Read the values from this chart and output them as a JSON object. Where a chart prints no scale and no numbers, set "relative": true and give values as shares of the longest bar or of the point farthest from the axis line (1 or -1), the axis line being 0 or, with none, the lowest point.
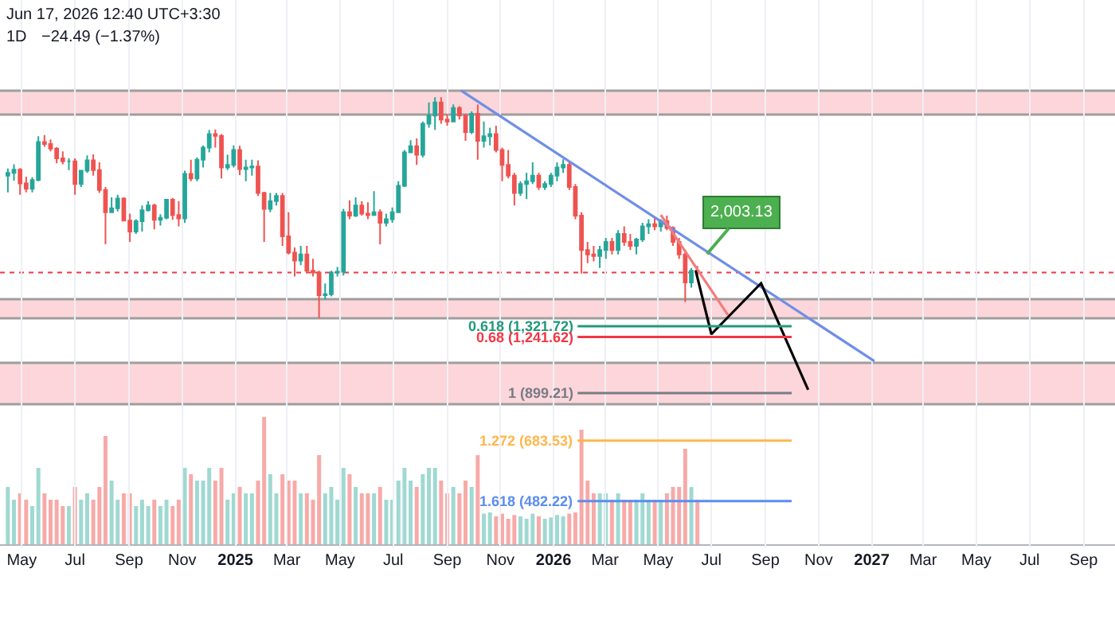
{
  "chart_data": [
    {
      "type": "candlestick",
      "log": true,
      "tick_labels": "x",
      "grid": "x",
      "annotations": [
        "Jun 17, 2026 12:40 UTC+3:30",
        "1D",
        "−24.49 (−1.37%)",
        {
          "text": "2,003.13",
          "x": "2026-06-26",
          "y": 2003.13
        }
      ],
      "colors": [
        "#26a69a",
        "#26a69a",
        "#ef5350",
        "#ef5350",
        "#26a69a",
        "#26a69a",
        "#ef5350",
        "#ef5350",
        "#ef5350",
        "#ef5350",
        "#26a69a",
        "#ef5350",
        "#26a69a",
        "#26a69a",
        "#ef5350",
        "#ef5350",
        "#ef5350",
        "#26a69a",
        "#26a69a",
        "#ef5350",
        "#ef5350",
        "#26a69a",
        "#26a69a",
        "#26a69a",
        "#ef5350",
        "#26a69a",
        "#26a69a",
        "#ef5350",
        "#ef5350",
        "#26a69a",
        "#ef5350",
        "#26a69a",
        "#26a69a",
        "#26a69a",
        "#ef5350",
        "#ef5350",
        "#26a69a",
        "#26a69a",
        "#ef5350",
        "#26a69a",
        "#26a69a",
        "#ef5350",
        "#ef5350",
        "#26a69a",
        "#26a69a",
        "#ef5350",
        "#ef5350",
        "#ef5350",
        "#26a69a",
        "#ef5350",
        "#ef5350",
        "#ef5350",
        "#26a69a",
        "#26a69a",
        "#26a69a",
        "#26a69a",
        "#ef5350",
        "#26a69a",
        "#ef5350",
        "#ef5350",
        "#26a69a",
        "#ef5350",
        "#26a69a",
        "#26a69a",
        "#26a69a",
        "#26a69a",
        "#26a69a",
        "#ef5350",
        "#26a69a",
        "#26a69a",
        "#26a69a",
        "#ef5350",
        "#ef5350",
        "#26a69a",
        "#ef5350",
        "#ef5350",
        "#26a69a",
        "#ef5350",
        "#26a69a",
        "#26a69a",
        "#ef5350",
        "#ef5350",
        "#ef5350",
        "#ef5350",
        "#26a69a",
        "#26a69a",
        "#26a69a",
        "#ef5350",
        "#26a69a",
        "#26a69a",
        "#26a69a",
        "#26a69a",
        "#ef5350",
        "#ef5350",
        "#ef5350",
        "#ef5350",
        "#ef5350",
        "#26a69a",
        "#26a69a",
        "#ef5350",
        "#26a69a",
        "#ef5350",
        "#ef5350",
        "#26a69a",
        "#26a69a",
        "#26a69a",
        "#ef5350",
        "#26a69a",
        "#ef5350",
        "#ef5350",
        "#ef5350",
        "#ef5350",
        "#26a69a",
        "#ef5350"
      ],
      "xlim": [
        "2024-04-06",
        "2027-10-07"
      ],
      "ylim": [
        369,
        8670
      ],
      "xticks": [
        {
          "value": "2024-05-01",
          "label": "May"
        },
        {
          "value": "2024-07-01",
          "label": "Jul"
        },
        {
          "value": "2024-09-01",
          "label": "Sep"
        },
        {
          "value": "2024-11-01",
          "label": "Nov"
        },
        {
          "value": "2025-01-01",
          "label": "2025"
        },
        {
          "value": "2025-03-01",
          "label": "Mar"
        },
        {
          "value": "2025-05-01",
          "label": "May"
        },
        {
          "value": "2025-07-01",
          "label": "Jul"
        },
        {
          "value": "2025-09-01",
          "label": "Sep"
        },
        {
          "value": "2025-11-01",
          "label": "Nov"
        },
        {
          "value": "2026-01-01",
          "label": "2026"
        },
        {
          "value": "2026-03-01",
          "label": "Mar"
        },
        {
          "value": "2026-05-01",
          "label": "May"
        },
        {
          "value": "2026-07-01",
          "label": "Jul"
        },
        {
          "value": "2026-09-01",
          "label": "Sep"
        },
        {
          "value": "2026-11-01",
          "label": "Nov"
        },
        {
          "value": "2027-01-01",
          "label": "2027"
        },
        {
          "value": "2027-03-01",
          "label": "Mar"
        },
        {
          "value": "2027-05-01",
          "label": "May"
        },
        {
          "value": "2027-07-01",
          "label": "Jul"
        },
        {
          "value": "2027-09-01",
          "label": "Sep"
        }
      ],
      "x": [
        "2024-04-15",
        "2024-04-22",
        "2024-04-29",
        "2024-05-06",
        "2024-05-13",
        "2024-05-20",
        "2024-05-27",
        "2024-06-03",
        "2024-06-10",
        "2024-06-17",
        "2024-06-24",
        "2024-07-01",
        "2024-07-08",
        "2024-07-15",
        "2024-07-22",
        "2024-07-29",
        "2024-08-05",
        "2024-08-12",
        "2024-08-19",
        "2024-08-26",
        "2024-09-02",
        "2024-09-09",
        "2024-09-16",
        "2024-09-23",
        "2024-09-30",
        "2024-10-07",
        "2024-10-14",
        "2024-10-21",
        "2024-10-28",
        "2024-11-04",
        "2024-11-11",
        "2024-11-18",
        "2024-11-25",
        "2024-12-02",
        "2024-12-09",
        "2024-12-16",
        "2024-12-23",
        "2024-12-30",
        "2025-01-06",
        "2025-01-13",
        "2025-01-20",
        "2025-01-27",
        "2025-02-03",
        "2025-02-10",
        "2025-02-17",
        "2025-02-24",
        "2025-03-03",
        "2025-03-10",
        "2025-03-17",
        "2025-03-24",
        "2025-03-31",
        "2025-04-07",
        "2025-04-14",
        "2025-04-21",
        "2025-04-28",
        "2025-05-05",
        "2025-05-12",
        "2025-05-19",
        "2025-05-26",
        "2025-06-02",
        "2025-06-09",
        "2025-06-16",
        "2025-06-23",
        "2025-06-30",
        "2025-07-07",
        "2025-07-14",
        "2025-07-21",
        "2025-07-28",
        "2025-08-04",
        "2025-08-11",
        "2025-08-18",
        "2025-08-25",
        "2025-09-01",
        "2025-09-08",
        "2025-09-15",
        "2025-09-22",
        "2025-09-29",
        "2025-10-06",
        "2025-10-13",
        "2025-10-20",
        "2025-10-27",
        "2025-11-03",
        "2025-11-10",
        "2025-11-17",
        "2025-11-24",
        "2025-12-01",
        "2025-12-08",
        "2025-12-15",
        "2025-12-22",
        "2025-12-29",
        "2026-01-05",
        "2026-01-12",
        "2026-01-19",
        "2026-01-26",
        "2026-02-02",
        "2026-02-09",
        "2026-02-16",
        "2026-02-23",
        "2026-03-02",
        "2026-03-09",
        "2026-03-16",
        "2026-03-23",
        "2026-03-30",
        "2026-04-06",
        "2026-04-13",
        "2026-04-20",
        "2026-04-27",
        "2026-05-04",
        "2026-05-11",
        "2026-05-18",
        "2026-05-25",
        "2026-06-01",
        "2026-06-08",
        "2026-06-15"
      ],
      "ohlc": [
        [
          3150,
          3280,
          2860,
          3200
        ],
        [
          3200,
          3360,
          3060,
          3260
        ],
        [
          3260,
          3290,
          2820,
          3010
        ],
        [
          3010,
          3130,
          2860,
          2920
        ],
        [
          2920,
          3120,
          2860,
          3070
        ],
        [
          3070,
          3950,
          3050,
          3820
        ],
        [
          3820,
          3980,
          3720,
          3780
        ],
        [
          3780,
          3880,
          3620,
          3680
        ],
        [
          3680,
          3710,
          3380,
          3480
        ],
        [
          3480,
          3620,
          3360,
          3420
        ],
        [
          3420,
          3480,
          3250,
          3420
        ],
        [
          3420,
          3480,
          2820,
          3000
        ],
        [
          3000,
          3250,
          2950,
          3240
        ],
        [
          3240,
          3540,
          3200,
          3440
        ],
        [
          3440,
          3560,
          3150,
          3250
        ],
        [
          3250,
          3400,
          2850,
          2900
        ],
        [
          2900,
          2950,
          2120,
          2550
        ],
        [
          2550,
          2780,
          2550,
          2610
        ],
        [
          2610,
          2820,
          2560,
          2760
        ],
        [
          2760,
          2780,
          2420,
          2430
        ],
        [
          2430,
          2530,
          2150,
          2280
        ],
        [
          2280,
          2450,
          2250,
          2420
        ],
        [
          2420,
          2650,
          2280,
          2580
        ],
        [
          2580,
          2720,
          2560,
          2650
        ],
        [
          2650,
          2680,
          2310,
          2440
        ],
        [
          2440,
          2520,
          2360,
          2470
        ],
        [
          2470,
          2750,
          2450,
          2740
        ],
        [
          2740,
          2770,
          2440,
          2510
        ],
        [
          2510,
          2720,
          2350,
          2460
        ],
        [
          2460,
          3240,
          2400,
          3180
        ],
        [
          3180,
          3450,
          3050,
          3100
        ],
        [
          3100,
          3500,
          3050,
          3450
        ],
        [
          3450,
          3750,
          3300,
          3700
        ],
        [
          3700,
          4100,
          3600,
          4000
        ],
        [
          4000,
          4110,
          3700,
          3960
        ],
        [
          3960,
          4000,
          3100,
          3300
        ],
        [
          3300,
          3550,
          3250,
          3350
        ],
        [
          3350,
          3750,
          3300,
          3650
        ],
        [
          3650,
          3740,
          3160,
          3270
        ],
        [
          3270,
          3450,
          3050,
          3300
        ],
        [
          3300,
          3450,
          3150,
          3320
        ],
        [
          3320,
          3440,
          2800,
          2850
        ],
        [
          2850,
          2870,
          2150,
          2600
        ],
        [
          2600,
          2850,
          2550,
          2720
        ],
        [
          2720,
          2850,
          2650,
          2800
        ],
        [
          2800,
          2850,
          2100,
          2220
        ],
        [
          2220,
          2550,
          2000,
          2020
        ],
        [
          2020,
          2080,
          1760,
          1930
        ],
        [
          1930,
          2100,
          1880,
          2000
        ],
        [
          2000,
          2100,
          1800,
          1820
        ],
        [
          1820,
          1950,
          1760,
          1800
        ],
        [
          1800,
          1820,
          1385,
          1580
        ],
        [
          1580,
          1690,
          1540,
          1590
        ],
        [
          1590,
          1820,
          1570,
          1800
        ],
        [
          1800,
          1860,
          1760,
          1810
        ],
        [
          1810,
          2600,
          1770,
          2550
        ],
        [
          2550,
          2730,
          2450,
          2500
        ],
        [
          2500,
          2780,
          2480,
          2650
        ],
        [
          2650,
          2720,
          2500,
          2530
        ],
        [
          2530,
          2700,
          2450,
          2510
        ],
        [
          2510,
          2880,
          2500,
          2550
        ],
        [
          2550,
          2590,
          2120,
          2400
        ],
        [
          2400,
          2530,
          2350,
          2450
        ],
        [
          2450,
          2620,
          2400,
          2550
        ],
        [
          2550,
          3050,
          2540,
          2970
        ],
        [
          2970,
          3650,
          2950,
          3600
        ],
        [
          3600,
          3860,
          3600,
          3730
        ],
        [
          3730,
          3900,
          3350,
          3550
        ],
        [
          3550,
          4300,
          3500,
          4250
        ],
        [
          4250,
          4800,
          4150,
          4450
        ],
        [
          4450,
          4950,
          4100,
          4800
        ],
        [
          4800,
          4950,
          4250,
          4350
        ],
        [
          4350,
          4500,
          4200,
          4300
        ],
        [
          4300,
          4750,
          4280,
          4650
        ],
        [
          4650,
          4700,
          4350,
          4450
        ],
        [
          4450,
          4500,
          3850,
          4050
        ],
        [
          4050,
          4560,
          4000,
          4500
        ],
        [
          4500,
          4750,
          3450,
          3850
        ],
        [
          3850,
          4300,
          3700,
          3950
        ],
        [
          3950,
          4150,
          3750,
          4000
        ],
        [
          4000,
          4200,
          3600,
          3650
        ],
        [
          3650,
          3700,
          3050,
          3350
        ],
        [
          3350,
          3650,
          3100,
          3150
        ],
        [
          3150,
          3200,
          2650,
          2850
        ],
        [
          2850,
          3050,
          2800,
          3000
        ],
        [
          3000,
          3200,
          2750,
          3050
        ],
        [
          3050,
          3400,
          3000,
          3150
        ],
        [
          3150,
          3200,
          2900,
          2950
        ],
        [
          2950,
          3050,
          2900,
          3000
        ],
        [
          3000,
          3200,
          2950,
          3150
        ],
        [
          3150,
          3400,
          3050,
          3300
        ],
        [
          3300,
          3460,
          3200,
          3350
        ],
        [
          3350,
          3400,
          2900,
          2950
        ],
        [
          2950,
          3000,
          2450,
          2500
        ],
        [
          2500,
          2550,
          1790,
          2050
        ],
        [
          2050,
          2150,
          1900,
          2000
        ],
        [
          2000,
          2100,
          1920,
          1980
        ],
        [
          1980,
          2100,
          1850,
          2050
        ],
        [
          2050,
          2200,
          1950,
          2150
        ],
        [
          2150,
          2200,
          2000,
          2050
        ],
        [
          2050,
          2300,
          2000,
          2250
        ],
        [
          2250,
          2350,
          2100,
          2150
        ],
        [
          2150,
          2250,
          2050,
          2100
        ],
        [
          2100,
          2200,
          2000,
          2180
        ],
        [
          2180,
          2400,
          2150,
          2350
        ],
        [
          2350,
          2450,
          2250,
          2380
        ],
        [
          2380,
          2480,
          2300,
          2350
        ],
        [
          2350,
          2450,
          2280,
          2420
        ],
        [
          2420,
          2500,
          2300,
          2330
        ],
        [
          2330,
          2350,
          2100,
          2150
        ],
        [
          2150,
          2200,
          1950,
          2000
        ],
        [
          2000,
          2050,
          1520,
          1700
        ],
        [
          1700,
          1850,
          1650,
          1820
        ],
        [
          1820,
          1870,
          1780,
          1800
        ]
      ],
      "bands": [
        {
          "axis": "y",
          "from": 4477,
          "to": 5140,
          "color": "#fcd6da"
        },
        {
          "axis": "y",
          "from": 1384,
          "to": 1545,
          "color": "#fcd6da"
        },
        {
          "axis": "y",
          "from": 843,
          "to": 1070,
          "color": "#fcd6da"
        }
      ],
      "ref_lines": [
        {
          "axis": "y",
          "value": 1800,
          "color": "#f23645",
          "line_style": "dotted"
        },
        {
          "axis": "y",
          "value": 1321.72,
          "label": "0.618 (1,321.72)",
          "color": "#22997a"
        },
        {
          "axis": "y",
          "value": 1241.62,
          "label": "0.68 (1,241.62)",
          "color": "#f23645"
        },
        {
          "axis": "y",
          "value": 899.21,
          "label": "1 (899.21)",
          "color": "#787b86"
        },
        {
          "axis": "y",
          "value": 683.53,
          "label": "1.272 (683.53)",
          "color": "#ffb74d"
        },
        {
          "axis": "y",
          "value": 482.22,
          "label": "1.618 (482.22)",
          "color": "#5b8def"
        }
      ],
      "series": [
        {
          "type": "line",
          "color": "#6f8ee6",
          "x": [
            "2025-09-17",
            "2027-01-04"
          ],
          "values": [
            5140,
            1080
          ]
        },
        {
          "type": "line",
          "color": "#f47c7c",
          "x": [
            "2026-05-04",
            "2026-07-20"
          ],
          "values": [
            2510,
            1410
          ]
        },
        {
          "type": "line",
          "color": "#000000",
          "x": [
            "2026-06-13",
            "2026-07-01",
            "2026-08-27",
            "2026-10-20"
          ],
          "values": [
            1822,
            1262,
            1693,
            916
          ]
        }
      ]
    },
    {
      "type": "bar",
      "relative": true,
      "tick_labels": false,
      "xlim": [
        "2024-04-06",
        "2027-10-07"
      ],
      "xticks": [
        {
          "value": "2024-05-01",
          "label": null
        },
        {
          "value": "2024-07-01",
          "label": null
        },
        {
          "value": "2024-09-01",
          "label": null
        },
        {
          "value": "2024-11-01",
          "label": null
        },
        {
          "value": "2025-01-01",
          "label": null
        },
        {
          "value": "2025-03-01",
          "label": null
        },
        {
          "value": "2025-05-01",
          "label": null
        },
        {
          "value": "2025-07-01",
          "label": null
        },
        {
          "value": "2025-09-01",
          "label": null
        },
        {
          "value": "2025-11-01",
          "label": null
        },
        {
          "value": "2026-01-01",
          "label": null
        },
        {
          "value": "2026-03-01",
          "label": null
        },
        {
          "value": "2026-05-01",
          "label": null
        },
        {
          "value": "2026-07-01",
          "label": null
        },
        {
          "value": "2026-09-01",
          "label": null
        },
        {
          "value": "2026-11-01",
          "label": null
        },
        {
          "value": "2027-01-01",
          "label": null
        },
        {
          "value": "2027-03-01",
          "label": null
        },
        {
          "value": "2027-05-01",
          "label": null
        },
        {
          "value": "2027-07-01",
          "label": null
        },
        {
          "value": "2027-09-01",
          "label": null
        }
      ],
      "x": [
        "2024-04-15",
        "2024-04-22",
        "2024-04-29",
        "2024-05-06",
        "2024-05-13",
        "2024-05-20",
        "2024-05-27",
        "2024-06-03",
        "2024-06-10",
        "2024-06-17",
        "2024-06-24",
        "2024-07-01",
        "2024-07-08",
        "2024-07-15",
        "2024-07-22",
        "2024-07-29",
        "2024-08-05",
        "2024-08-12",
        "2024-08-19",
        "2024-08-26",
        "2024-09-02",
        "2024-09-09",
        "2024-09-16",
        "2024-09-23",
        "2024-09-30",
        "2024-10-07",
        "2024-10-14",
        "2024-10-21",
        "2024-10-28",
        "2024-11-04",
        "2024-11-11",
        "2024-11-18",
        "2024-11-25",
        "2024-12-02",
        "2024-12-09",
        "2024-12-16",
        "2024-12-23",
        "2024-12-30",
        "2025-01-06",
        "2025-01-13",
        "2025-01-20",
        "2025-01-27",
        "2025-02-03",
        "2025-02-10",
        "2025-02-17",
        "2025-02-24",
        "2025-03-03",
        "2025-03-10",
        "2025-03-17",
        "2025-03-24",
        "2025-03-31",
        "2025-04-07",
        "2025-04-14",
        "2025-04-21",
        "2025-04-28",
        "2025-05-05",
        "2025-05-12",
        "2025-05-19",
        "2025-05-26",
        "2025-06-02",
        "2025-06-09",
        "2025-06-16",
        "2025-06-23",
        "2025-06-30",
        "2025-07-07",
        "2025-07-14",
        "2025-07-21",
        "2025-07-28",
        "2025-08-04",
        "2025-08-11",
        "2025-08-18",
        "2025-08-25",
        "2025-09-01",
        "2025-09-08",
        "2025-09-15",
        "2025-09-22",
        "2025-09-29",
        "2025-10-06",
        "2025-10-13",
        "2025-10-20",
        "2025-10-27",
        "2025-11-03",
        "2025-11-10",
        "2025-11-17",
        "2025-11-24",
        "2025-12-01",
        "2025-12-08",
        "2025-12-15",
        "2025-12-22",
        "2025-12-29",
        "2026-01-05",
        "2026-01-12",
        "2026-01-19",
        "2026-01-26",
        "2026-02-02",
        "2026-02-09",
        "2026-02-16",
        "2026-02-23",
        "2026-03-02",
        "2026-03-09",
        "2026-03-16",
        "2026-03-23",
        "2026-03-30",
        "2026-04-06",
        "2026-04-13",
        "2026-04-20",
        "2026-04-27",
        "2026-05-04",
        "2026-05-11",
        "2026-05-18",
        "2026-05-25",
        "2026-06-01",
        "2026-06-08",
        "2026-06-15"
      ],
      "values": [
        0.45,
        0.35,
        0.4,
        0.35,
        0.3,
        0.6,
        0.4,
        0.35,
        0.35,
        0.3,
        0.3,
        0.45,
        0.35,
        0.4,
        0.35,
        0.45,
        0.85,
        0.5,
        0.35,
        0.4,
        0.4,
        0.3,
        0.35,
        0.3,
        0.35,
        0.3,
        0.35,
        0.3,
        0.35,
        0.6,
        0.55,
        0.5,
        0.5,
        0.6,
        0.5,
        0.6,
        0.35,
        0.4,
        0.45,
        0.4,
        0.4,
        0.5,
        1.0,
        0.55,
        0.4,
        0.55,
        0.5,
        0.5,
        0.4,
        0.4,
        0.35,
        0.7,
        0.4,
        0.45,
        0.35,
        0.6,
        0.55,
        0.45,
        0.4,
        0.4,
        0.4,
        0.45,
        0.35,
        0.35,
        0.5,
        0.6,
        0.5,
        0.45,
        0.55,
        0.6,
        0.6,
        0.5,
        0.4,
        0.45,
        0.4,
        0.5,
        0.45,
        0.7,
        0.24,
        0.25,
        0.22,
        0.24,
        0.2,
        0.23,
        0.22,
        0.2,
        0.24,
        0.22,
        0.2,
        0.21,
        0.23,
        0.22,
        0.24,
        0.25,
        0.9,
        0.5,
        0.4,
        0.4,
        0.4,
        0.35,
        0.4,
        0.35,
        0.35,
        0.35,
        0.4,
        0.35,
        0.35,
        0.35,
        0.4,
        0.45,
        0.45,
        0.75,
        0.45,
        0.35
      ],
      "colors": [
        "#9fd9d2",
        "#9fd9d2",
        "#f7aaa8",
        "#f7aaa8",
        "#9fd9d2",
        "#9fd9d2",
        "#f7aaa8",
        "#f7aaa8",
        "#f7aaa8",
        "#f7aaa8",
        "#9fd9d2",
        "#f7aaa8",
        "#9fd9d2",
        "#9fd9d2",
        "#f7aaa8",
        "#f7aaa8",
        "#f7aaa8",
        "#9fd9d2",
        "#9fd9d2",
        "#f7aaa8",
        "#f7aaa8",
        "#9fd9d2",
        "#9fd9d2",
        "#9fd9d2",
        "#f7aaa8",
        "#9fd9d2",
        "#9fd9d2",
        "#f7aaa8",
        "#f7aaa8",
        "#9fd9d2",
        "#f7aaa8",
        "#9fd9d2",
        "#9fd9d2",
        "#9fd9d2",
        "#f7aaa8",
        "#f7aaa8",
        "#9fd9d2",
        "#9fd9d2",
        "#f7aaa8",
        "#9fd9d2",
        "#9fd9d2",
        "#f7aaa8",
        "#f7aaa8",
        "#9fd9d2",
        "#9fd9d2",
        "#f7aaa8",
        "#f7aaa8",
        "#f7aaa8",
        "#9fd9d2",
        "#f7aaa8",
        "#f7aaa8",
        "#f7aaa8",
        "#9fd9d2",
        "#9fd9d2",
        "#9fd9d2",
        "#9fd9d2",
        "#f7aaa8",
        "#9fd9d2",
        "#f7aaa8",
        "#f7aaa8",
        "#9fd9d2",
        "#f7aaa8",
        "#9fd9d2",
        "#9fd9d2",
        "#9fd9d2",
        "#9fd9d2",
        "#9fd9d2",
        "#f7aaa8",
        "#9fd9d2",
        "#9fd9d2",
        "#9fd9d2",
        "#f7aaa8",
        "#f7aaa8",
        "#9fd9d2",
        "#f7aaa8",
        "#f7aaa8",
        "#9fd9d2",
        "#f7aaa8",
        "#9fd9d2",
        "#9fd9d2",
        "#f7aaa8",
        "#f7aaa8",
        "#f7aaa8",
        "#f7aaa8",
        "#9fd9d2",
        "#9fd9d2",
        "#9fd9d2",
        "#f7aaa8",
        "#9fd9d2",
        "#9fd9d2",
        "#9fd9d2",
        "#9fd9d2",
        "#f7aaa8",
        "#f7aaa8",
        "#f7aaa8",
        "#f7aaa8",
        "#f7aaa8",
        "#9fd9d2",
        "#9fd9d2",
        "#f7aaa8",
        "#9fd9d2",
        "#f7aaa8",
        "#f7aaa8",
        "#9fd9d2",
        "#9fd9d2",
        "#9fd9d2",
        "#f7aaa8",
        "#9fd9d2",
        "#f7aaa8",
        "#f7aaa8",
        "#f7aaa8",
        "#f7aaa8",
        "#9fd9d2",
        "#f7aaa8"
      ]
    }
  ]
}
